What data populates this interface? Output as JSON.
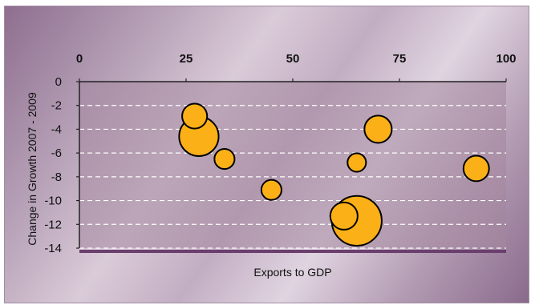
{
  "chart_data": {
    "type": "scatter",
    "subtype": "bubble",
    "title": "",
    "xlabel": "Exports to GDP",
    "ylabel": "Change in Growth 2007 - 2009",
    "xlim": [
      0,
      100
    ],
    "ylim": [
      -14,
      0
    ],
    "x_ticks": [
      "0",
      "25",
      "50",
      "75",
      "100"
    ],
    "y_ticks": [
      "0",
      "-2",
      "-4",
      "-6",
      "-8",
      "-10",
      "-12",
      "-14"
    ],
    "x_axis_position": "top",
    "grid": true,
    "legend": "none",
    "bubble_color": "#fcb017",
    "bubble_edge_color": "#000000",
    "points": [
      {
        "x": 27,
        "y": -2.9,
        "size": 2
      },
      {
        "x": 28,
        "y": -4.6,
        "size": 5
      },
      {
        "x": 34,
        "y": -6.5,
        "size": 1.3
      },
      {
        "x": 45,
        "y": -9.1,
        "size": 1.3
      },
      {
        "x": 62,
        "y": -11.3,
        "size": 2.4
      },
      {
        "x": 65,
        "y": -11.7,
        "size": 8
      },
      {
        "x": 65,
        "y": -6.8,
        "size": 1.1
      },
      {
        "x": 70,
        "y": -4,
        "size": 2.4
      },
      {
        "x": 93,
        "y": -7.3,
        "size": 2.1
      }
    ]
  }
}
